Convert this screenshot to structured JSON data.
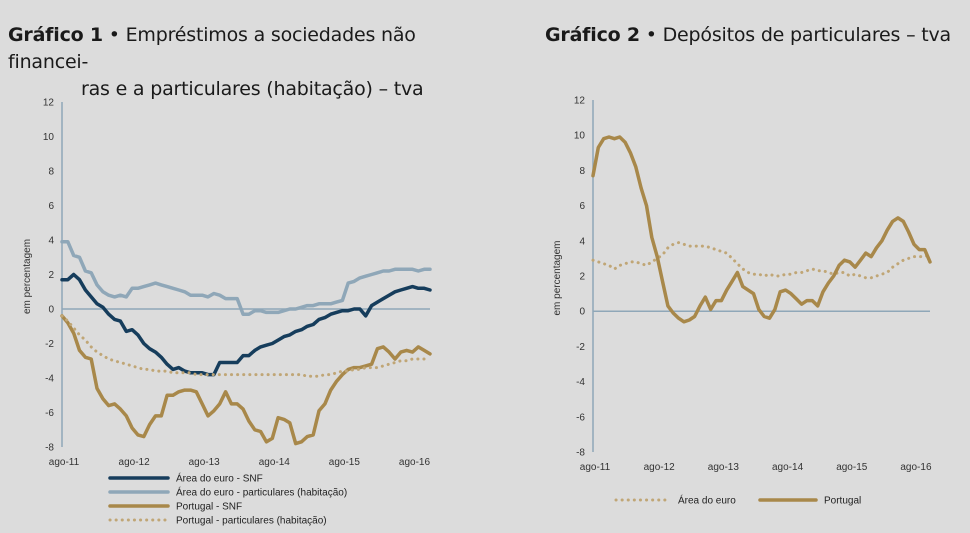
{
  "chart_data": [
    {
      "type": "line",
      "title_prefix": "Gráfico 1",
      "title_bullet": "•",
      "title_line1": "Empréstimos a sociedades não financei-",
      "title_line2": "ras e a particulares (habitação) – tva",
      "ylabel": "em percentagem",
      "ylim": [
        -8,
        12
      ],
      "yticks": [
        "12",
        "10",
        "8",
        "6",
        "4",
        "2",
        "0",
        "-2",
        "-4",
        "-6",
        "-8"
      ],
      "xlim": [
        0,
        63
      ],
      "xticks": [
        {
          "label": "ago-11",
          "x": 0
        },
        {
          "label": "ago-12",
          "x": 12
        },
        {
          "label": "ago-13",
          "x": 24
        },
        {
          "label": "ago-14",
          "x": 36
        },
        {
          "label": "ago-15",
          "x": 48
        },
        {
          "label": "ago-16",
          "x": 60
        }
      ],
      "legend_position": "bottom",
      "series": [
        {
          "name": "Área do euro - SNF",
          "color": "#163d5c",
          "style": "solid",
          "width": 3.5,
          "values": [
            1.7,
            1.7,
            2.0,
            1.7,
            1.1,
            0.7,
            0.3,
            0.1,
            -0.3,
            -0.6,
            -0.7,
            -1.3,
            -1.2,
            -1.5,
            -2.0,
            -2.3,
            -2.5,
            -2.8,
            -3.2,
            -3.5,
            -3.4,
            -3.6,
            -3.7,
            -3.7,
            -3.7,
            -3.8,
            -3.8,
            -3.1,
            -3.1,
            -3.1,
            -3.1,
            -2.7,
            -2.7,
            -2.4,
            -2.2,
            -2.1,
            -2.0,
            -1.8,
            -1.6,
            -1.5,
            -1.3,
            -1.2,
            -1.0,
            -0.9,
            -0.6,
            -0.5,
            -0.3,
            -0.2,
            -0.1,
            -0.1,
            0.0,
            0.0,
            -0.4,
            0.2,
            0.4,
            0.6,
            0.8,
            1.0,
            1.1,
            1.2,
            1.3,
            1.2,
            1.2,
            1.1
          ]
        },
        {
          "name": "Área do euro - particulares (habitação)",
          "color": "#8fa7b8",
          "style": "solid",
          "width": 3.5,
          "values": [
            3.9,
            3.9,
            3.1,
            3.0,
            2.2,
            2.1,
            1.4,
            1.0,
            0.8,
            0.7,
            0.8,
            0.7,
            1.2,
            1.2,
            1.3,
            1.4,
            1.5,
            1.4,
            1.3,
            1.2,
            1.1,
            1.0,
            0.8,
            0.8,
            0.8,
            0.7,
            0.9,
            0.8,
            0.6,
            0.6,
            0.6,
            -0.3,
            -0.3,
            -0.1,
            -0.1,
            -0.2,
            -0.2,
            -0.2,
            -0.1,
            0.0,
            0.0,
            0.1,
            0.2,
            0.2,
            0.3,
            0.3,
            0.3,
            0.4,
            0.5,
            1.5,
            1.6,
            1.8,
            1.9,
            2.0,
            2.1,
            2.2,
            2.2,
            2.3,
            2.3,
            2.3,
            2.3,
            2.2,
            2.3,
            2.3
          ]
        },
        {
          "name": "Portugal - SNF",
          "color": "#a8884a",
          "style": "solid",
          "width": 3.5,
          "values": [
            -0.4,
            -0.8,
            -1.4,
            -2.4,
            -2.8,
            -2.9,
            -4.6,
            -5.2,
            -5.6,
            -5.5,
            -5.8,
            -6.2,
            -6.9,
            -7.3,
            -7.4,
            -6.7,
            -6.2,
            -6.2,
            -5.0,
            -5.0,
            -4.8,
            -4.7,
            -4.7,
            -4.8,
            -5.5,
            -6.2,
            -5.9,
            -5.5,
            -4.8,
            -5.5,
            -5.5,
            -5.8,
            -6.5,
            -7.0,
            -7.1,
            -7.7,
            -7.5,
            -6.3,
            -6.4,
            -6.6,
            -7.8,
            -7.7,
            -7.4,
            -7.3,
            -5.9,
            -5.5,
            -4.7,
            -4.2,
            -3.8,
            -3.5,
            -3.4,
            -3.4,
            -3.3,
            -3.2,
            -2.3,
            -2.2,
            -2.5,
            -2.9,
            -2.5,
            -2.4,
            -2.5,
            -2.2,
            -2.4,
            -2.6
          ]
        },
        {
          "name": "Portugal - particulares (habitação)",
          "color": "#c0a676",
          "style": "dotted",
          "width": 3,
          "values": [
            -0.4,
            -0.7,
            -1.1,
            -1.5,
            -1.8,
            -2.2,
            -2.5,
            -2.7,
            -2.9,
            -3.0,
            -3.1,
            -3.2,
            -3.3,
            -3.4,
            -3.5,
            -3.5,
            -3.6,
            -3.6,
            -3.6,
            -3.7,
            -3.7,
            -3.7,
            -3.7,
            -3.8,
            -3.8,
            -3.8,
            -3.8,
            -3.8,
            -3.8,
            -3.8,
            -3.8,
            -3.8,
            -3.8,
            -3.8,
            -3.8,
            -3.8,
            -3.8,
            -3.8,
            -3.8,
            -3.8,
            -3.8,
            -3.8,
            -3.9,
            -3.9,
            -3.9,
            -3.8,
            -3.8,
            -3.7,
            -3.6,
            -3.6,
            -3.5,
            -3.5,
            -3.4,
            -3.4,
            -3.4,
            -3.3,
            -3.2,
            -3.1,
            -3.0,
            -3.0,
            -2.9,
            -2.9,
            -2.9,
            -2.9
          ]
        }
      ]
    },
    {
      "type": "line",
      "title_prefix": "Gráfico 2",
      "title_bullet": "•",
      "title_line1": "Depósitos de particulares – tva",
      "ylabel": "em percentagem",
      "ylim": [
        -8,
        12
      ],
      "yticks": [
        "12",
        "10",
        "8",
        "6",
        "4",
        "2",
        "0",
        "-2",
        "-4",
        "-6",
        "-8"
      ],
      "xlim": [
        0,
        63
      ],
      "xticks": [
        {
          "label": "ago-11",
          "x": 0
        },
        {
          "label": "ago-12",
          "x": 12
        },
        {
          "label": "ago-13",
          "x": 24
        },
        {
          "label": "ago-14",
          "x": 36
        },
        {
          "label": "ago-15",
          "x": 48
        },
        {
          "label": "ago-16",
          "x": 60
        }
      ],
      "legend_position": "bottom",
      "series": [
        {
          "name": "Área do euro",
          "color": "#c0a676",
          "style": "dotted",
          "width": 3,
          "values": [
            2.9,
            2.8,
            2.7,
            2.6,
            2.4,
            2.6,
            2.7,
            2.8,
            2.8,
            2.7,
            2.6,
            2.8,
            3.0,
            3.2,
            3.6,
            3.8,
            3.9,
            3.8,
            3.7,
            3.7,
            3.7,
            3.7,
            3.6,
            3.5,
            3.4,
            3.3,
            3.0,
            2.7,
            2.4,
            2.2,
            2.1,
            2.1,
            2.0,
            2.1,
            2.0,
            2.0,
            2.1,
            2.1,
            2.2,
            2.2,
            2.3,
            2.4,
            2.3,
            2.3,
            2.2,
            2.1,
            2.2,
            2.2,
            2.0,
            2.1,
            2.0,
            1.9,
            1.9,
            2.0,
            2.1,
            2.2,
            2.5,
            2.7,
            2.9,
            3.0,
            3.1,
            3.1,
            3.1,
            3.2
          ]
        },
        {
          "name": "Portugal",
          "color": "#a8884a",
          "style": "solid",
          "width": 3.5,
          "values": [
            7.7,
            9.3,
            9.8,
            9.9,
            9.8,
            9.9,
            9.6,
            9.0,
            8.2,
            7.0,
            6.0,
            4.2,
            3.1,
            1.7,
            0.3,
            -0.1,
            -0.4,
            -0.6,
            -0.5,
            -0.3,
            0.3,
            0.8,
            0.1,
            0.6,
            0.6,
            1.2,
            1.7,
            2.2,
            1.4,
            1.2,
            1.0,
            0.1,
            -0.3,
            -0.4,
            0.1,
            1.1,
            1.2,
            1.0,
            0.7,
            0.4,
            0.6,
            0.6,
            0.3,
            1.1,
            1.6,
            2.0,
            2.6,
            2.9,
            2.8,
            2.5,
            2.9,
            3.3,
            3.1,
            3.6,
            4.0,
            4.6,
            5.1,
            5.3,
            5.1,
            4.5,
            3.8,
            3.5,
            3.5,
            2.8
          ]
        }
      ]
    }
  ]
}
